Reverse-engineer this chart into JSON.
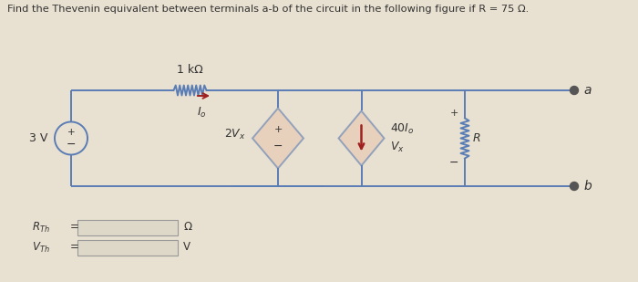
{
  "title": "Find the Thevenin equivalent between terminals a-b of the circuit in the following figure if R = 75 Ω.",
  "bg_color": "#e8e0d0",
  "wire_color": "#5a7db5",
  "text_color": "#333333",
  "resistor_label": "1 kΩ",
  "voltage_source_label": "3 V",
  "vcvs_label": "2V",
  "vcvs_x_sub": "x",
  "cccs_label": "40I",
  "cccs_o_sub": "o",
  "vx_label": "V",
  "vx_x_sub": "x",
  "R_label": "R",
  "Io_label": "I",
  "Io_sub": "o",
  "terminal_a": "a",
  "terminal_b": "b",
  "unit_R": "Ω",
  "unit_V": "V",
  "diamond_fill": "#e8c8b0",
  "arrow_color": "#a02020",
  "plus_color": "#333333",
  "minus_color": "#333333"
}
